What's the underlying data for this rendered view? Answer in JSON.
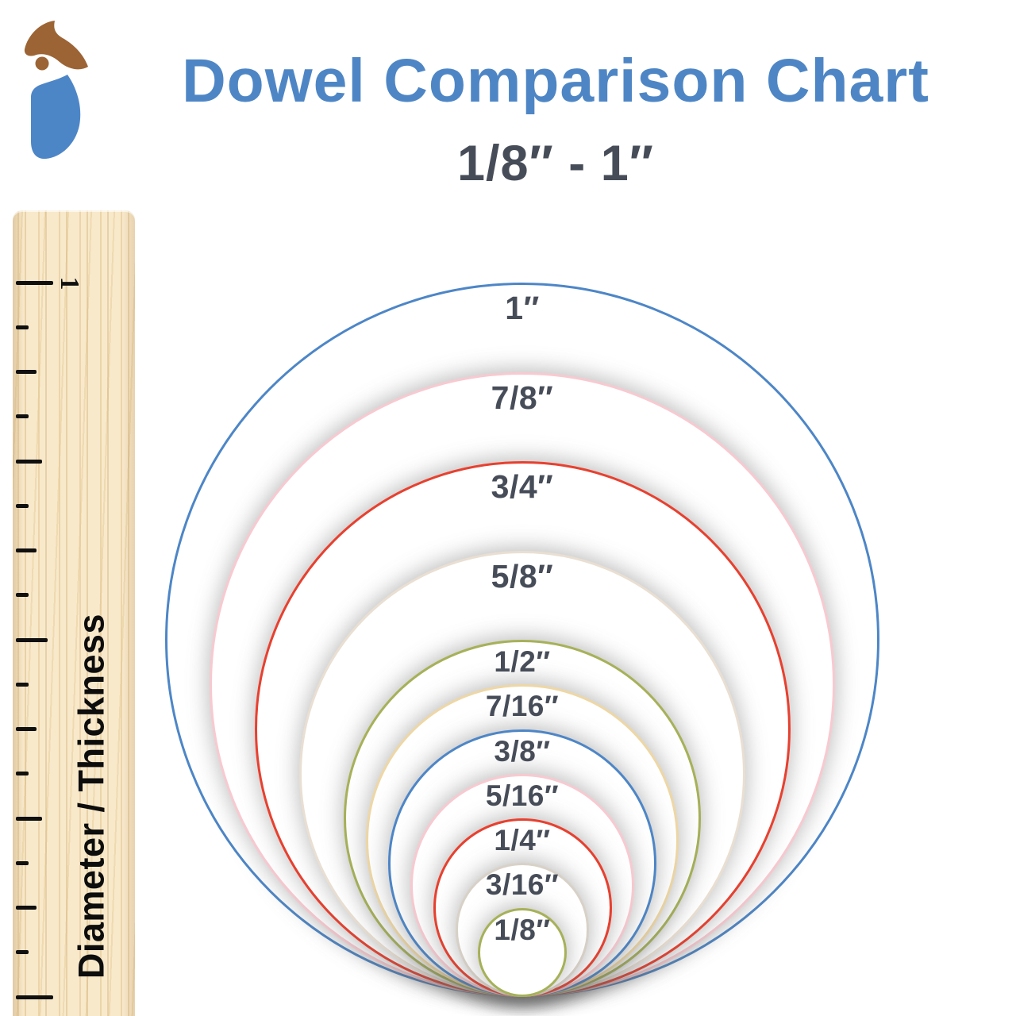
{
  "header": {
    "title": "Dowel Comparison Chart",
    "subtitle": "1/8″ - 1″",
    "title_color": "#4e86c5",
    "subtitle_color": "#474d58"
  },
  "logo": {
    "name": "woodpecker-logo",
    "head_color": "#9c6434",
    "body_color": "#4d86c7"
  },
  "ruler": {
    "inch_label": "1",
    "caption": "Diameter / Thickness"
  },
  "chart_data": {
    "type": "nested-circles",
    "title": "Dowel Comparison Chart",
    "range_label": "1/8″ - 1″",
    "unit": "inches",
    "note": "All circles share a common bottom tangent point; circle diameter is drawn to scale against the 1-inch ruler at left.",
    "circles": [
      {
        "label": "1″",
        "diameter_in": 1.0,
        "stroke": "#4d86c7"
      },
      {
        "label": "7/8″",
        "diameter_in": 0.875,
        "stroke": "#f8c9d0"
      },
      {
        "label": "3/4″",
        "diameter_in": 0.75,
        "stroke": "#e8402f"
      },
      {
        "label": "5/8″",
        "diameter_in": 0.625,
        "stroke": "#e9dfd2"
      },
      {
        "label": "1/2″",
        "diameter_in": 0.5,
        "stroke": "#a6b158"
      },
      {
        "label": "7/16″",
        "diameter_in": 0.4375,
        "stroke": "#eed7a4"
      },
      {
        "label": "3/8″",
        "diameter_in": 0.375,
        "stroke": "#4d86c7"
      },
      {
        "label": "5/16″",
        "diameter_in": 0.3125,
        "stroke": "#f8c9d0"
      },
      {
        "label": "1/4″",
        "diameter_in": 0.25,
        "stroke": "#e8402f"
      },
      {
        "label": "3/16″",
        "diameter_in": 0.1875,
        "stroke": "#d8d1c7"
      },
      {
        "label": "1/8″",
        "diameter_in": 0.125,
        "stroke": "#a6b158"
      }
    ]
  }
}
